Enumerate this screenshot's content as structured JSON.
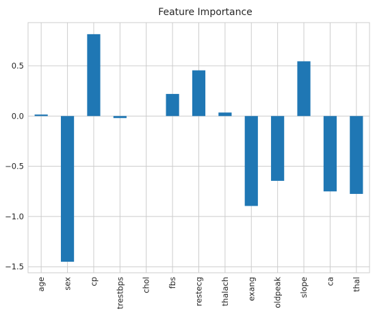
{
  "chart_data": {
    "type": "bar",
    "title": "Feature Importance",
    "xlabel": "",
    "ylabel": "",
    "categories": [
      "age",
      "sex",
      "cp",
      "trestbps",
      "chol",
      "fbs",
      "restecg",
      "thalach",
      "exang",
      "oldpeak",
      "slope",
      "ca",
      "thal"
    ],
    "values": [
      0.015,
      -1.45,
      0.815,
      -0.02,
      0.0,
      0.22,
      0.455,
      0.035,
      -0.895,
      -0.645,
      0.545,
      -0.75,
      -0.775
    ],
    "ylim": [
      -1.56,
      0.93
    ],
    "yticks": [
      -1.5,
      -1.0,
      -0.5,
      0.0,
      0.5
    ],
    "ytick_labels": [
      "−1.5",
      "−1.0",
      "−0.5",
      "0.0",
      "0.5"
    ],
    "grid": true,
    "bar_color": "#1f77b4",
    "grid_color": "#cccccc"
  }
}
